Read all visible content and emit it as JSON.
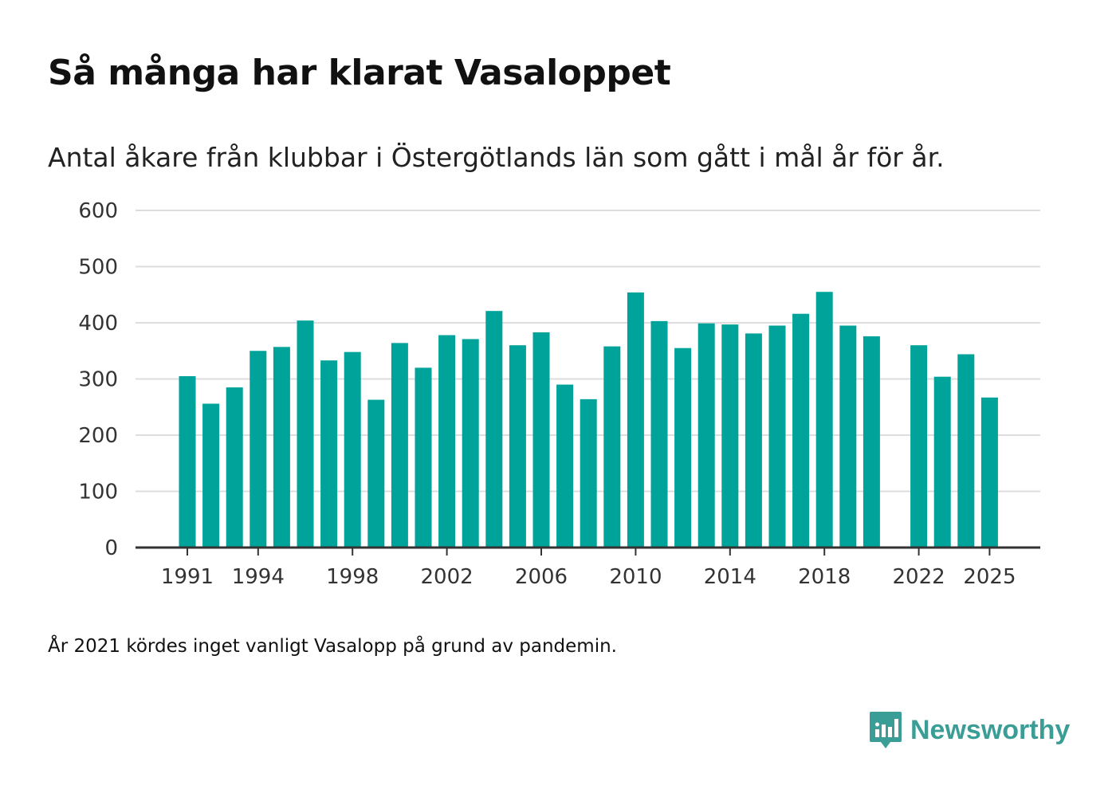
{
  "title": "Så många har klarat Vasaloppet",
  "subtitle": "Antal åkare från klubbar i Östergötlands län som gått i mål år för år.",
  "footnote": "År 2021 kördes inget vanligt Vasalopp på grund av pandemin.",
  "brand": {
    "name": "Newsworthy",
    "icon": "newsworthy-logo-icon",
    "color": "#3a9e96"
  },
  "colors": {
    "bar": "#00a39a",
    "grid": "#dddddd",
    "axis": "#333333"
  },
  "chart_data": {
    "type": "bar",
    "title": "Så många har klarat Vasaloppet",
    "xlabel": "",
    "ylabel": "",
    "ylim": [
      0,
      600
    ],
    "yticks": [
      0,
      100,
      200,
      300,
      400,
      500,
      600
    ],
    "xticks": [
      1991,
      1994,
      1998,
      2002,
      2006,
      2010,
      2014,
      2018,
      2022,
      2025
    ],
    "grid": true,
    "categories": [
      1991,
      1992,
      1993,
      1994,
      1995,
      1996,
      1997,
      1998,
      1999,
      2000,
      2001,
      2002,
      2003,
      2004,
      2005,
      2006,
      2007,
      2008,
      2009,
      2010,
      2011,
      2012,
      2013,
      2014,
      2015,
      2016,
      2017,
      2018,
      2019,
      2020,
      2021,
      2022,
      2023,
      2024,
      2025
    ],
    "values": [
      305,
      256,
      285,
      350,
      357,
      404,
      333,
      348,
      263,
      364,
      320,
      378,
      371,
      421,
      360,
      383,
      290,
      264,
      358,
      454,
      403,
      355,
      399,
      397,
      381,
      395,
      416,
      455,
      395,
      376,
      null,
      360,
      304,
      344,
      267
    ]
  }
}
